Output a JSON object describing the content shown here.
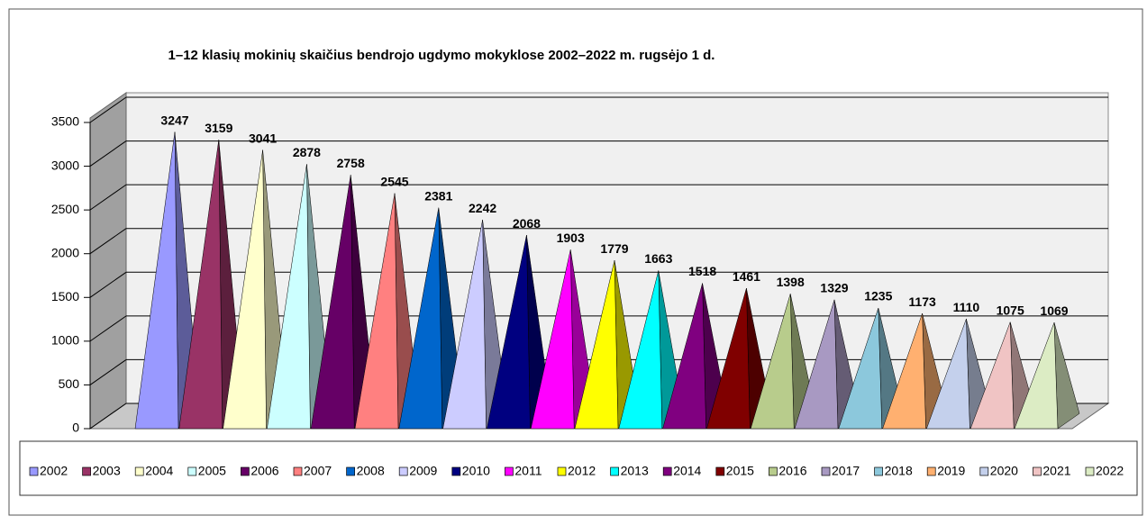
{
  "chart_data": {
    "type": "pyramid3d",
    "title": "1–12 klasių mokinių skaičius bendrojo ugdymo mokyklose 2002–2022 m. rugsėjo 1 d.",
    "categories": [
      "2002",
      "2003",
      "2004",
      "2005",
      "2006",
      "2007",
      "2008",
      "2009",
      "2010",
      "2011",
      "2012",
      "2013",
      "2014",
      "2015",
      "2016",
      "2017",
      "2018",
      "2019",
      "2020",
      "2021",
      "2022"
    ],
    "values": [
      3247,
      3159,
      3041,
      2878,
      2758,
      2545,
      2381,
      2242,
      2068,
      1903,
      1779,
      1663,
      1518,
      1461,
      1398,
      1329,
      1235,
      1173,
      1110,
      1075,
      1069
    ],
    "colors": [
      "#9999ff",
      "#993366",
      "#ffffcc",
      "#ccffff",
      "#660066",
      "#ff8080",
      "#0066cc",
      "#ccccff",
      "#000080",
      "#ff00ff",
      "#ffff00",
      "#00ffff",
      "#800080",
      "#800000",
      "#b8cc8c",
      "#a899c2",
      "#8cc8dc",
      "#ffb070",
      "#c4d0ec",
      "#f0c4c4",
      "#dcecc4"
    ],
    "ylim": [
      0,
      3500
    ],
    "yticks": [
      0,
      500,
      1000,
      1500,
      2000,
      2500,
      3000,
      3500
    ],
    "grid": true,
    "legend": "bottom"
  }
}
